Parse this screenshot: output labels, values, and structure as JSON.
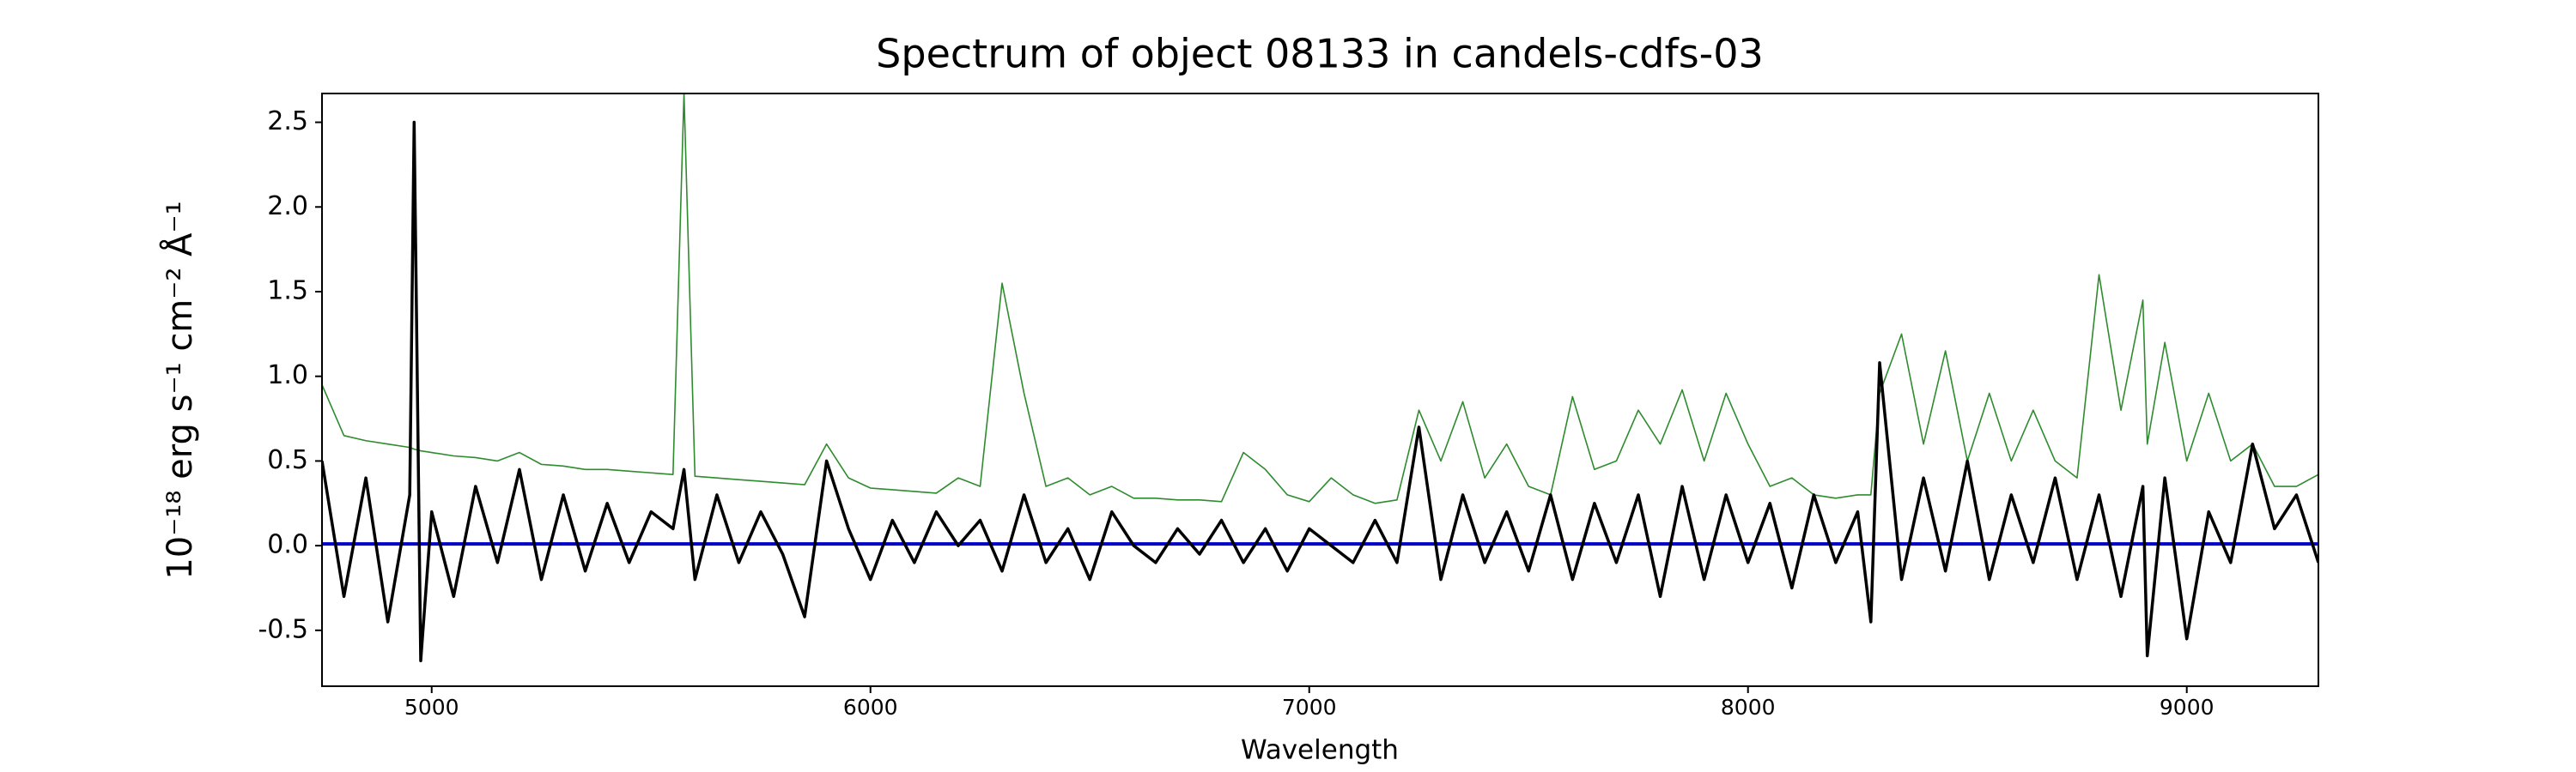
{
  "chart_data": {
    "type": "line",
    "title": "Spectrum of object 08133 in candels-cdfs-03",
    "x_label": "Wavelength",
    "y_label": "10⁻¹⁸ erg s⁻¹ cm⁻² Å⁻¹",
    "x": [
      4750,
      4800,
      4850,
      4900,
      4950,
      4960,
      4975,
      5000,
      5050,
      5100,
      5150,
      5200,
      5250,
      5300,
      5350,
      5400,
      5450,
      5500,
      5550,
      5575,
      5600,
      5650,
      5700,
      5750,
      5800,
      5850,
      5900,
      5950,
      6000,
      6050,
      6100,
      6150,
      6200,
      6250,
      6300,
      6350,
      6400,
      6450,
      6500,
      6550,
      6600,
      6650,
      6700,
      6750,
      6800,
      6850,
      6900,
      6950,
      7000,
      7050,
      7100,
      7150,
      7200,
      7250,
      7300,
      7350,
      7400,
      7450,
      7500,
      7550,
      7600,
      7650,
      7700,
      7750,
      7800,
      7850,
      7900,
      7950,
      8000,
      8050,
      8100,
      8150,
      8200,
      8250,
      8280,
      8300,
      8350,
      8400,
      8450,
      8500,
      8550,
      8600,
      8650,
      8700,
      8750,
      8800,
      8850,
      8900,
      8910,
      8950,
      9000,
      9050,
      9100,
      9150,
      9200,
      9250,
      9300
    ],
    "series": [
      {
        "color": "#2e8b2e",
        "width": 1.6,
        "values": [
          0.95,
          0.65,
          0.62,
          0.6,
          0.58,
          0.57,
          0.56,
          0.55,
          0.53,
          0.52,
          0.5,
          0.55,
          0.48,
          0.47,
          0.45,
          0.45,
          0.44,
          0.43,
          0.42,
          2.67,
          0.41,
          0.4,
          0.39,
          0.38,
          0.37,
          0.36,
          0.6,
          0.4,
          0.34,
          0.33,
          0.32,
          0.31,
          0.4,
          0.35,
          1.55,
          0.9,
          0.35,
          0.4,
          0.3,
          0.35,
          0.28,
          0.28,
          0.27,
          0.27,
          0.26,
          0.55,
          0.45,
          0.3,
          0.26,
          0.4,
          0.3,
          0.25,
          0.27,
          0.8,
          0.5,
          0.85,
          0.4,
          0.6,
          0.35,
          0.3,
          0.88,
          0.45,
          0.5,
          0.8,
          0.6,
          0.92,
          0.5,
          0.9,
          0.6,
          0.35,
          0.4,
          0.3,
          0.28,
          0.3,
          0.3,
          0.9,
          1.25,
          0.6,
          1.15,
          0.5,
          0.9,
          0.5,
          0.8,
          0.5,
          0.4,
          1.6,
          0.8,
          1.45,
          0.6,
          1.2,
          0.5,
          0.9,
          0.5,
          0.6,
          0.35,
          0.35,
          0.42
        ]
      },
      {
        "color": "#0000cc",
        "width": 4,
        "values": [
          0.01,
          0.01,
          0.01,
          0.01,
          0.01,
          0.01,
          0.01,
          0.01,
          0.01,
          0.01,
          0.01,
          0.01,
          0.01,
          0.01,
          0.01,
          0.01,
          0.01,
          0.01,
          0.01,
          0.01,
          0.01,
          0.01,
          0.01,
          0.01,
          0.01,
          0.01,
          0.01,
          0.01,
          0.01,
          0.01,
          0.01,
          0.01,
          0.01,
          0.01,
          0.01,
          0.01,
          0.01,
          0.01,
          0.01,
          0.01,
          0.01,
          0.01,
          0.01,
          0.01,
          0.01,
          0.01,
          0.01,
          0.01,
          0.01,
          0.01,
          0.01,
          0.01,
          0.01,
          0.01,
          0.01,
          0.01,
          0.01,
          0.01,
          0.01,
          0.01,
          0.01,
          0.01,
          0.01,
          0.01,
          0.01,
          0.01,
          0.01,
          0.01,
          0.01,
          0.01,
          0.01,
          0.01,
          0.01,
          0.01,
          0.01,
          0.01,
          0.01,
          0.01,
          0.01,
          0.01,
          0.01,
          0.01,
          0.01,
          0.01,
          0.01,
          0.01,
          0.01,
          0.01,
          0.01,
          0.01,
          0.01,
          0.01,
          0.01,
          0.01,
          0.01,
          0.01,
          0.01
        ]
      },
      {
        "color": "#000000",
        "width": 3.5,
        "values": [
          0.5,
          -0.3,
          0.4,
          -0.45,
          0.3,
          2.5,
          -0.68,
          0.2,
          -0.3,
          0.35,
          -0.1,
          0.45,
          -0.2,
          0.3,
          -0.15,
          0.25,
          -0.1,
          0.2,
          0.1,
          0.45,
          -0.2,
          0.3,
          -0.1,
          0.2,
          -0.05,
          -0.42,
          0.5,
          0.1,
          -0.2,
          0.15,
          -0.1,
          0.2,
          0.0,
          0.15,
          -0.15,
          0.3,
          -0.1,
          0.1,
          -0.2,
          0.2,
          0.0,
          -0.1,
          0.1,
          -0.05,
          0.15,
          -0.1,
          0.1,
          -0.15,
          0.1,
          0.0,
          -0.1,
          0.15,
          -0.1,
          0.7,
          -0.2,
          0.3,
          -0.1,
          0.2,
          -0.15,
          0.3,
          -0.2,
          0.25,
          -0.1,
          0.3,
          -0.3,
          0.35,
          -0.2,
          0.3,
          -0.1,
          0.25,
          -0.25,
          0.3,
          -0.1,
          0.2,
          -0.45,
          1.08,
          -0.2,
          0.4,
          -0.15,
          0.5,
          -0.2,
          0.3,
          -0.1,
          0.4,
          -0.2,
          0.3,
          -0.3,
          0.35,
          -0.65,
          0.4,
          -0.55,
          0.2,
          -0.1,
          0.6,
          0.1,
          0.3,
          -0.1
        ]
      }
    ],
    "xlim": [
      4750,
      9300
    ],
    "ylim": [
      -0.83,
      2.67
    ],
    "xticks": [
      5000,
      6000,
      7000,
      8000,
      9000
    ],
    "yticks": [
      -0.5,
      0.0,
      0.5,
      1.0,
      1.5,
      2.0,
      2.5
    ]
  }
}
